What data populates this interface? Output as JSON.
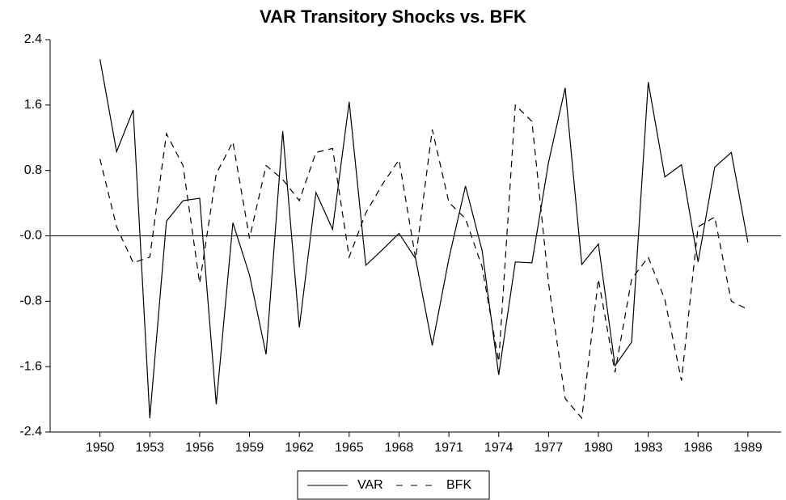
{
  "chart_data": {
    "type": "line",
    "title": "VAR Transitory Shocks vs. BFK",
    "x": [
      1950,
      1951,
      1952,
      1953,
      1954,
      1955,
      1956,
      1957,
      1958,
      1959,
      1960,
      1961,
      1962,
      1963,
      1964,
      1965,
      1966,
      1967,
      1968,
      1969,
      1970,
      1971,
      1972,
      1973,
      1974,
      1975,
      1976,
      1977,
      1978,
      1979,
      1980,
      1981,
      1982,
      1983,
      1984,
      1985,
      1986,
      1987,
      1988,
      1989
    ],
    "series": [
      {
        "name": "VAR",
        "color": "#000000",
        "dash": "solid",
        "values": [
          2.16,
          1.03,
          1.54,
          -2.23,
          0.18,
          0.43,
          0.46,
          -2.06,
          0.16,
          -0.48,
          -1.45,
          1.28,
          -1.12,
          0.53,
          0.08,
          1.64,
          -0.36,
          -0.17,
          0.03,
          -0.28,
          -1.34,
          -0.28,
          0.61,
          -0.18,
          -1.7,
          -0.32,
          -0.33,
          0.9,
          1.81,
          -0.35,
          -0.1,
          -1.59,
          -1.3,
          1.88,
          0.72,
          0.87,
          -0.32,
          0.84,
          1.02,
          -0.08
        ]
      },
      {
        "name": "BFK",
        "color": "#000000",
        "dash": "dashed",
        "values": [
          0.94,
          0.11,
          -0.33,
          -0.26,
          1.25,
          0.86,
          -0.58,
          0.76,
          1.15,
          -0.03,
          0.86,
          0.69,
          0.43,
          1.02,
          1.07,
          -0.26,
          0.28,
          0.63,
          0.93,
          -0.28,
          1.3,
          0.41,
          0.21,
          -0.38,
          -1.54,
          1.6,
          1.4,
          -0.58,
          -1.99,
          -2.23,
          -0.53,
          -1.67,
          -0.53,
          -0.26,
          -0.78,
          -1.77,
          0.11,
          0.23,
          -0.8,
          -0.9
        ]
      }
    ],
    "xlim": [
      1947,
      1991
    ],
    "xticks": [
      1950,
      1953,
      1956,
      1959,
      1962,
      1965,
      1968,
      1971,
      1974,
      1977,
      1980,
      1983,
      1986,
      1989
    ],
    "ylim": [
      -2.4,
      2.4
    ],
    "yticks": [
      2.4,
      1.6,
      0.8,
      {
        "value": 0,
        "label": "-0.0"
      },
      -0.8,
      -1.6,
      -2.4
    ],
    "legend": "bottom"
  }
}
